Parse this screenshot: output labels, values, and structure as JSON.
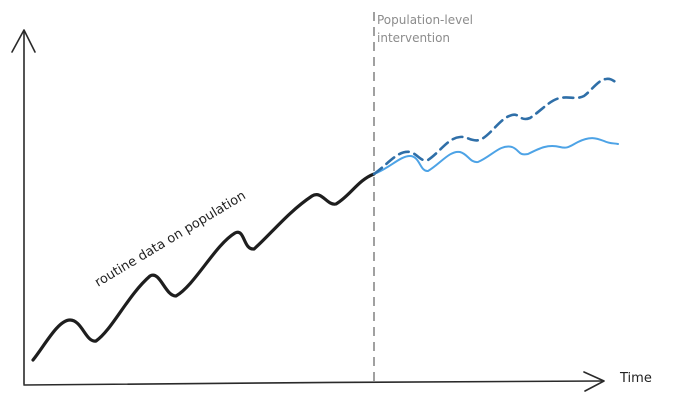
{
  "annotations": {
    "intervention_line1": "Population-level",
    "intervention_line2": "intervention",
    "series_label": "routine data on population",
    "x_axis_label": "Time"
  },
  "colors": {
    "observed": "#1e1e1e",
    "projected_without": "#2f6fa8",
    "projected_with": "#4da3e6",
    "divider": "#a0a0a0",
    "axis": "#2a2a2a"
  },
  "icons": {
    "x_arrow": "arrow-right-icon",
    "y_arrow": "arrow-up-icon"
  }
}
